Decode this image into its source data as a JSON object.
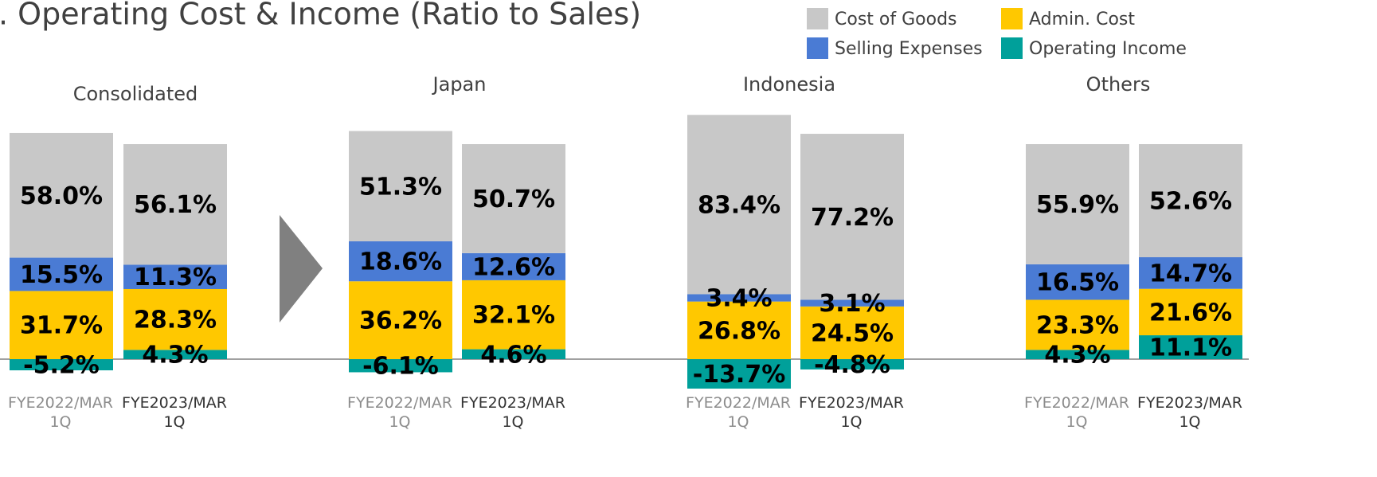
{
  "title": ". Operating Cost & Income (Ratio to Sales)",
  "chart_data": [
    {
      "type": "bar",
      "stacked": true,
      "title": "Consolidated",
      "categories": [
        "FYE2022/MAR 1Q",
        "FYE2023/MAR 1Q"
      ],
      "series": [
        {
          "name": "Cost of Goods",
          "color": "#c8c8c8",
          "values": [
            58.0,
            56.1
          ],
          "value_labels": [
            "58.0%",
            "56.1%"
          ]
        },
        {
          "name": "Selling Expenses",
          "color": "#4a7bd4",
          "values": [
            15.5,
            11.3
          ],
          "value_labels": [
            "15.5%",
            "11.3%"
          ]
        },
        {
          "name": "Admin. Cost",
          "color": "#ffc800",
          "values": [
            31.7,
            28.3
          ],
          "value_labels": [
            "31.7%",
            "28.3%"
          ]
        },
        {
          "name": "Operating Income",
          "color": "#00a09a",
          "values": [
            -5.2,
            4.3
          ],
          "value_labels": [
            "-5.2%",
            "4.3%"
          ]
        }
      ]
    },
    {
      "type": "bar",
      "stacked": true,
      "title": "Japan",
      "categories": [
        "FYE2022/MAR 1Q",
        "FYE2023/MAR 1Q"
      ],
      "series": [
        {
          "name": "Cost of Goods",
          "color": "#c8c8c8",
          "values": [
            51.3,
            50.7
          ],
          "value_labels": [
            "51.3%",
            "50.7%"
          ]
        },
        {
          "name": "Selling Expenses",
          "color": "#4a7bd4",
          "values": [
            18.6,
            12.6
          ],
          "value_labels": [
            "18.6%",
            "12.6%"
          ]
        },
        {
          "name": "Admin. Cost",
          "color": "#ffc800",
          "values": [
            36.2,
            32.1
          ],
          "value_labels": [
            "36.2%",
            "32.1%"
          ]
        },
        {
          "name": "Operating Income",
          "color": "#00a09a",
          "values": [
            -6.1,
            4.6
          ],
          "value_labels": [
            "-6.1%",
            "4.6%"
          ]
        }
      ]
    },
    {
      "type": "bar",
      "stacked": true,
      "title": "Indonesia",
      "categories": [
        "FYE2022/MAR 1Q",
        "FYE2023/MAR 1Q"
      ],
      "series": [
        {
          "name": "Cost of Goods",
          "color": "#c8c8c8",
          "values": [
            83.4,
            77.2
          ],
          "value_labels": [
            "83.4%",
            "77.2%"
          ]
        },
        {
          "name": "Selling Expenses",
          "color": "#4a7bd4",
          "values": [
            3.4,
            3.1
          ],
          "value_labels": [
            "3.4%",
            "3.1%"
          ]
        },
        {
          "name": "Admin. Cost",
          "color": "#ffc800",
          "values": [
            26.8,
            24.5
          ],
          "value_labels": [
            "26.8%",
            "24.5%"
          ]
        },
        {
          "name": "Operating Income",
          "color": "#00a09a",
          "values": [
            -13.7,
            -4.8
          ],
          "value_labels": [
            "-13.7%",
            "-4.8%"
          ]
        }
      ]
    },
    {
      "type": "bar",
      "stacked": true,
      "title": "Others",
      "categories": [
        "FYE2022/MAR 1Q",
        "FYE2023/MAR 1Q"
      ],
      "series": [
        {
          "name": "Cost of Goods",
          "color": "#c8c8c8",
          "values": [
            55.9,
            52.6
          ],
          "value_labels": [
            "55.9%",
            "52.6%"
          ]
        },
        {
          "name": "Selling Expenses",
          "color": "#4a7bd4",
          "values": [
            16.5,
            14.7
          ],
          "value_labels": [
            "16.5%",
            "14.7%"
          ]
        },
        {
          "name": "Admin. Cost",
          "color": "#ffc800",
          "values": [
            23.3,
            21.6
          ],
          "value_labels": [
            "23.3%",
            "21.6%"
          ]
        },
        {
          "name": "Operating Income",
          "color": "#00a09a",
          "values": [
            4.3,
            11.1
          ],
          "value_labels": [
            "4.3%",
            "11.1%"
          ]
        }
      ]
    }
  ]
}
